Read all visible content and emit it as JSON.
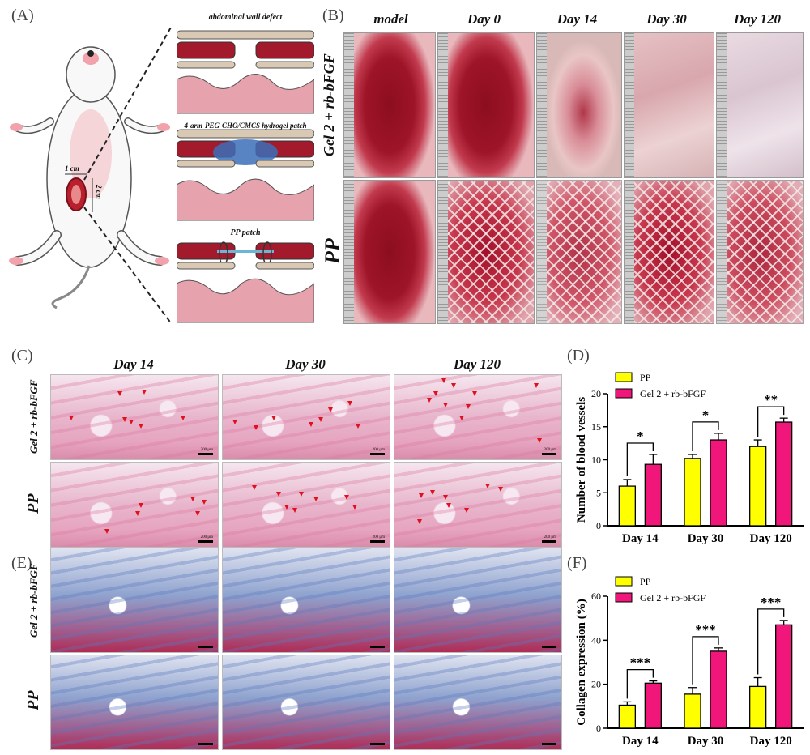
{
  "panels": {
    "A": "(A)",
    "B": "(B)",
    "C": "(C)",
    "D": "(D)",
    "E": "(E)",
    "F": "(F)"
  },
  "panel_a": {
    "width_label": "1 cm",
    "height_label": "2 cm",
    "schematics": [
      "abdominal wall defect",
      "4-arm-PEG-CHO/CMCS hydrogel patch",
      "PP patch"
    ]
  },
  "panel_b": {
    "columns": [
      "model",
      "Day 0",
      "Day 14",
      "Day 30",
      "Day 120"
    ],
    "rows": [
      "Gel 2 + rb-bFGF",
      "PP"
    ]
  },
  "panel_c": {
    "columns": [
      "Day 14",
      "Day 30",
      "Day 120"
    ],
    "rows": [
      "Gel 2 + rb-bFGF",
      "PP"
    ],
    "scale": "200 μm"
  },
  "panel_e": {
    "rows": [
      "Gel 2 + rb-bFGF",
      "PP"
    ],
    "scale": "200 μm"
  },
  "chart_data": [
    {
      "type": "bar",
      "categories": [
        "Day 14",
        "Day 30",
        "Day 120"
      ],
      "series": [
        {
          "name": "PP",
          "values": [
            6.0,
            10.2,
            12.0
          ],
          "errors": [
            1.0,
            0.6,
            1.0
          ],
          "color": "#ffff00"
        },
        {
          "name": "Gel 2 + rb-bFGF",
          "values": [
            9.3,
            13.0,
            15.7
          ],
          "errors": [
            1.5,
            1.0,
            0.6
          ],
          "color": "#f0167a"
        }
      ],
      "ylabel": "Number of blood vessels",
      "ylim": [
        0,
        20
      ],
      "yticks": [
        0,
        5,
        10,
        15,
        20
      ],
      "significance": [
        "*",
        "*",
        "**"
      ]
    },
    {
      "type": "bar",
      "categories": [
        "Day 14",
        "Day 30",
        "Day 120"
      ],
      "series": [
        {
          "name": "PP",
          "values": [
            10.5,
            15.5,
            19.0
          ],
          "errors": [
            1.5,
            3.0,
            4.0
          ],
          "color": "#ffff00"
        },
        {
          "name": "Gel 2 + rb-bFGF",
          "values": [
            20.5,
            35.0,
            47.0
          ],
          "errors": [
            1.0,
            1.5,
            2.0
          ],
          "color": "#f0167a"
        }
      ],
      "ylabel": "Collagen expression (%)",
      "ylim": [
        0,
        60
      ],
      "yticks": [
        0,
        20,
        40,
        60
      ],
      "significance": [
        "***",
        "***",
        "***"
      ]
    }
  ]
}
